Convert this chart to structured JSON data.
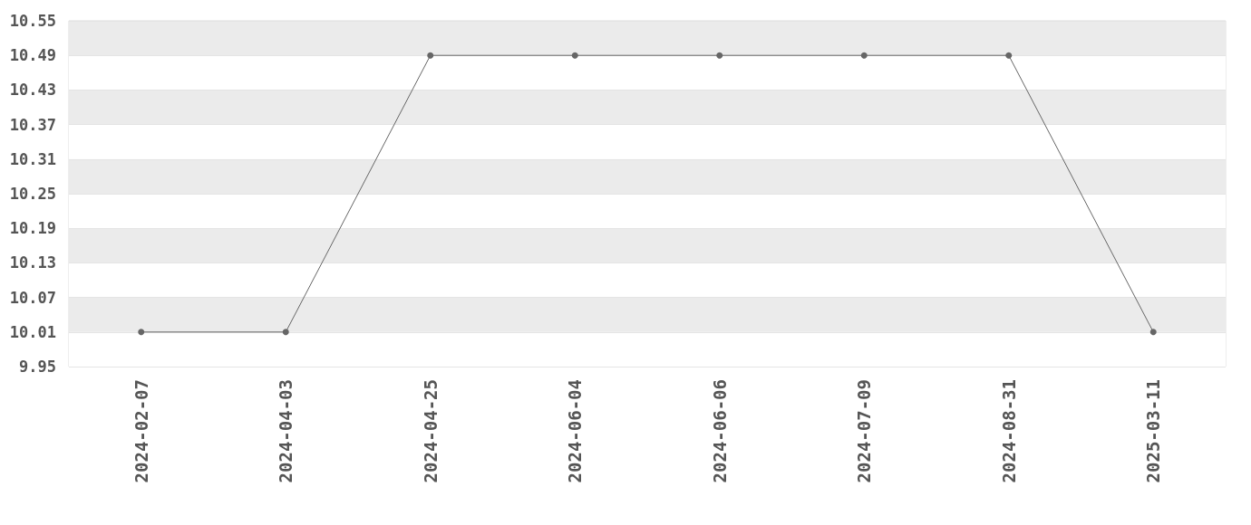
{
  "chart_data": {
    "type": "line",
    "categories": [
      "2024-02-07",
      "2024-04-03",
      "2024-04-25",
      "2024-06-04",
      "2024-06-06",
      "2024-07-09",
      "2024-08-31",
      "2025-03-11"
    ],
    "series": [
      {
        "color": "#666666",
        "values": [
          10.01,
          10.01,
          10.49,
          10.49,
          10.49,
          10.49,
          10.49,
          10.01
        ]
      }
    ],
    "ylim": [
      9.95,
      10.55
    ],
    "yticks": [
      9.95,
      10.01,
      10.07,
      10.13,
      10.19,
      10.25,
      10.31,
      10.37,
      10.43,
      10.49,
      10.55
    ],
    "grid": "y",
    "marker": "circle",
    "line_style": "solid"
  }
}
